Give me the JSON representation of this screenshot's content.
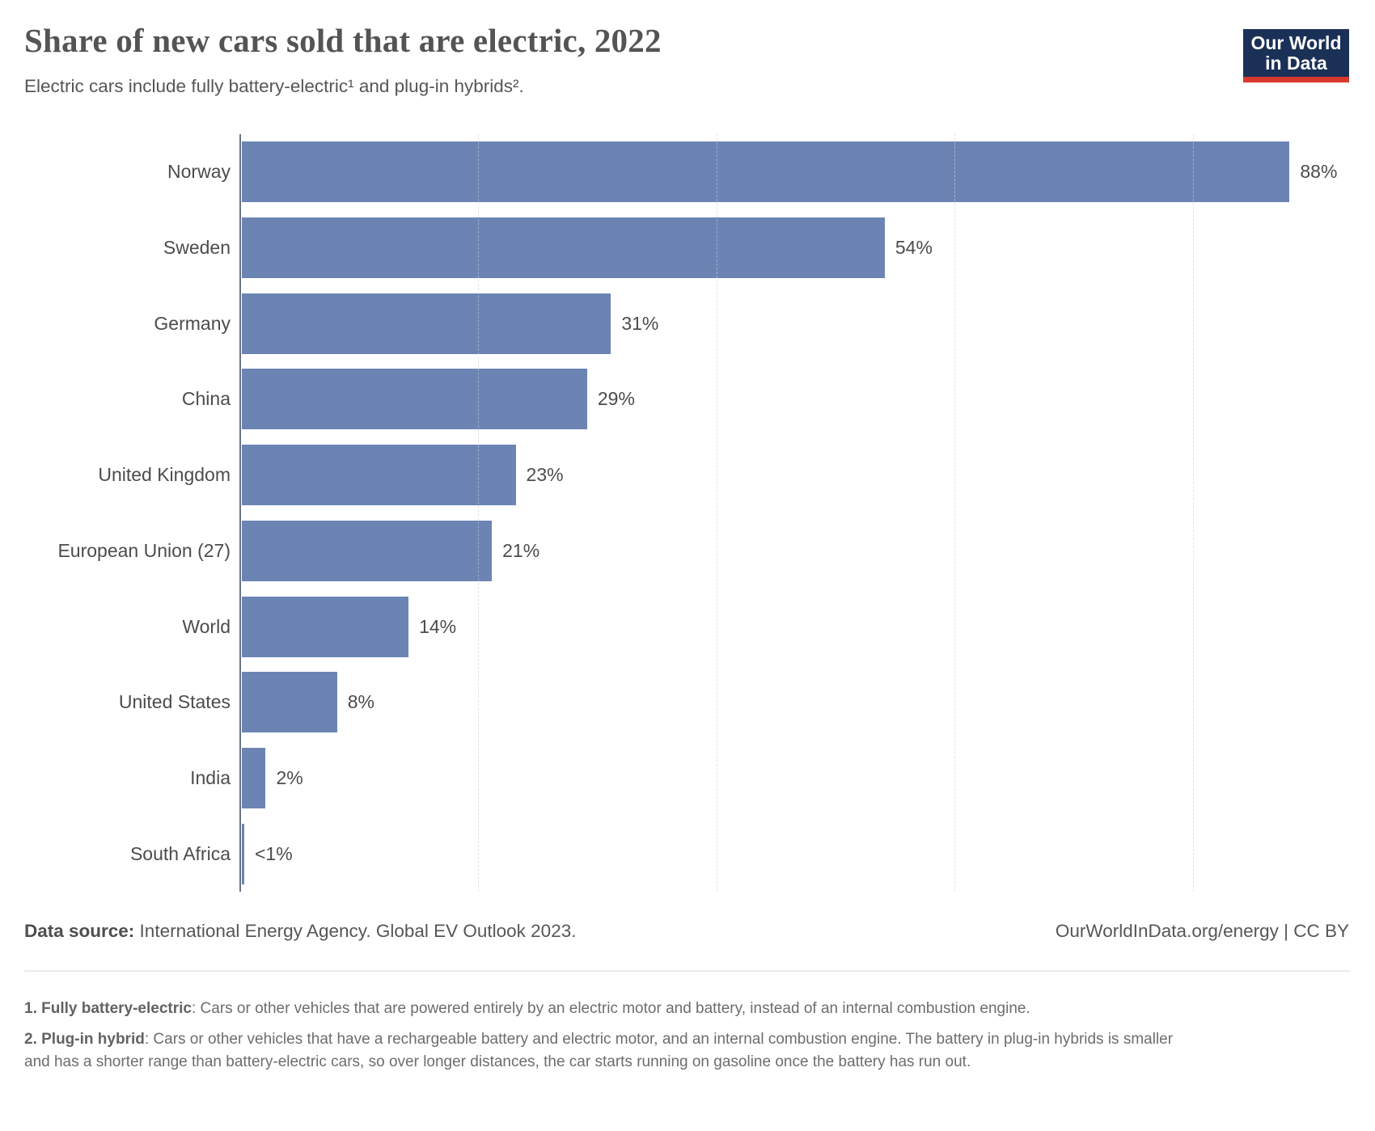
{
  "header": {
    "title": "Share of new cars sold that are electric, 2022",
    "subtitle": "Electric cars include fully battery-electric¹ and plug-in hybrids².",
    "logo": {
      "line1": "Our World",
      "line2": "in Data"
    }
  },
  "chart_data": {
    "type": "bar",
    "orientation": "horizontal",
    "title": "Share of new cars sold that are electric, 2022",
    "unit": "%",
    "categories": [
      "Norway",
      "Sweden",
      "Germany",
      "China",
      "United Kingdom",
      "European Union (27)",
      "World",
      "United States",
      "India",
      "South Africa"
    ],
    "values": [
      88,
      54,
      31,
      29,
      23,
      21,
      14,
      8,
      2,
      0.2
    ],
    "value_labels": [
      "88%",
      "54%",
      "31%",
      "29%",
      "23%",
      "21%",
      "14%",
      "8%",
      "2%",
      "<1%"
    ],
    "xlim": [
      0,
      100
    ],
    "gridlines": [
      20,
      40,
      60,
      80
    ],
    "grid": "dashed-vertical",
    "legend": "none",
    "bar_color": "#6c84b4"
  },
  "footer": {
    "data_source_label": "Data source:",
    "data_source_text": " International Energy Agency. Global EV Outlook 2023.",
    "attribution": "OurWorldInData.org/energy | CC BY"
  },
  "footnotes": [
    {
      "label": "1. Fully battery-electric",
      "text": ": Cars or other vehicles that are powered entirely by an electric motor and battery, instead of an internal combustion engine."
    },
    {
      "label": "2. Plug-in hybrid",
      "text": ": Cars or other vehicles that have a rechargeable battery and electric motor, and an internal combustion engine. The battery in plug-in hybrids is smaller and has a shorter range than battery-electric cars, so over longer distances, the car starts running on gasoline once the battery has run out."
    }
  ]
}
